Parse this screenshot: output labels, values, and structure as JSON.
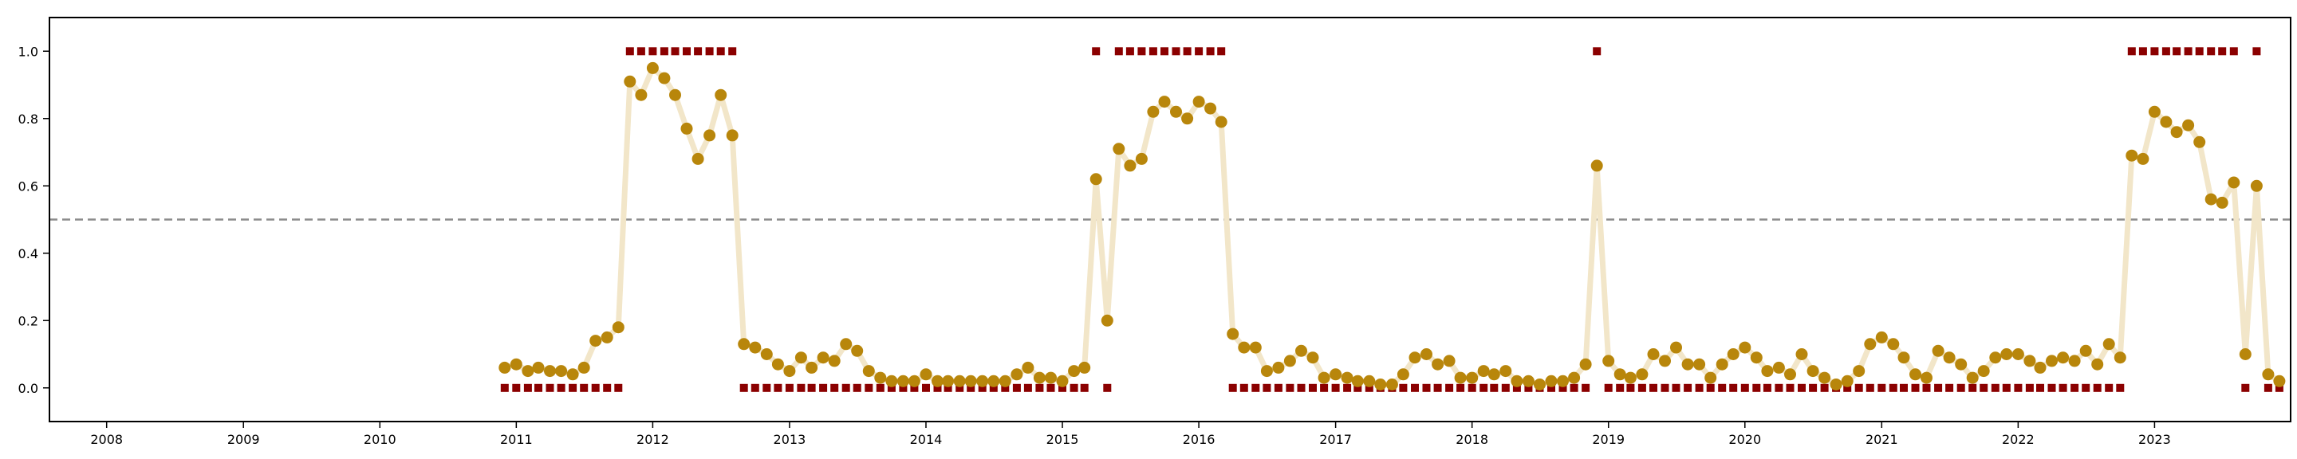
{
  "chart_data": {
    "type": "scatter",
    "x_axis": {
      "type": "date",
      "range": [
        "2007-08-01",
        "2023-12-31"
      ],
      "ticks": [
        "2008",
        "2009",
        "2010",
        "2011",
        "2012",
        "2013",
        "2014",
        "2015",
        "2016",
        "2017",
        "2018",
        "2019",
        "2020",
        "2021",
        "2022",
        "2023"
      ]
    },
    "y_axis": {
      "range": [
        -0.1,
        1.1
      ],
      "ticks": [
        "0.0",
        "0.2",
        "0.4",
        "0.6",
        "0.8",
        "1.0"
      ]
    },
    "threshold": 0.5,
    "grid": false,
    "legend": "none",
    "colors": {
      "probability_line": "#f2e6c9",
      "probability_point": "#b8860b",
      "label_marker": "#8b0000",
      "threshold_line": "#8c8c8c",
      "axes": "#000000"
    },
    "series": [
      {
        "x": [
          "2010-12",
          "2011-01",
          "2011-02",
          "2011-03",
          "2011-04",
          "2011-05",
          "2011-06",
          "2011-07",
          "2011-08",
          "2011-09",
          "2011-10",
          "2011-11",
          "2011-12",
          "2012-01",
          "2012-02",
          "2012-03",
          "2012-04",
          "2012-05",
          "2012-06",
          "2012-07",
          "2012-08",
          "2012-09",
          "2012-10",
          "2012-11",
          "2012-12",
          "2013-01",
          "2013-02",
          "2013-03",
          "2013-04",
          "2013-05",
          "2013-06",
          "2013-07",
          "2013-08",
          "2013-09",
          "2013-10",
          "2013-11",
          "2013-12",
          "2014-01",
          "2014-02",
          "2014-03",
          "2014-04",
          "2014-05",
          "2014-06",
          "2014-07",
          "2014-08",
          "2014-09",
          "2014-10",
          "2014-11",
          "2014-12",
          "2015-01",
          "2015-02",
          "2015-03",
          "2015-04",
          "2015-05",
          "2015-06",
          "2015-07",
          "2015-08",
          "2015-09",
          "2015-10",
          "2015-11",
          "2015-12",
          "2016-01",
          "2016-02",
          "2016-03",
          "2016-04",
          "2016-05",
          "2016-06",
          "2016-07",
          "2016-08",
          "2016-09",
          "2016-10",
          "2016-11",
          "2016-12",
          "2017-01",
          "2017-02",
          "2017-03",
          "2017-04",
          "2017-05",
          "2017-06",
          "2017-07",
          "2017-08",
          "2017-09",
          "2017-10",
          "2017-11",
          "2017-12",
          "2018-01",
          "2018-02",
          "2018-03",
          "2018-04",
          "2018-05",
          "2018-06",
          "2018-07",
          "2018-08",
          "2018-09",
          "2018-10",
          "2018-11",
          "2018-12",
          "2019-01",
          "2019-02",
          "2019-03",
          "2019-04",
          "2019-05",
          "2019-06",
          "2019-07",
          "2019-08",
          "2019-09",
          "2019-10",
          "2019-11",
          "2019-12",
          "2020-01",
          "2020-02",
          "2020-03",
          "2020-04",
          "2020-05",
          "2020-06",
          "2020-07",
          "2020-08",
          "2020-09",
          "2020-10",
          "2020-11",
          "2020-12",
          "2021-01",
          "2021-02",
          "2021-03",
          "2021-04",
          "2021-05",
          "2021-06",
          "2021-07",
          "2021-08",
          "2021-09",
          "2021-10",
          "2021-11",
          "2021-12",
          "2022-01",
          "2022-02",
          "2022-03",
          "2022-04",
          "2022-05",
          "2022-06",
          "2022-07",
          "2022-08",
          "2022-09",
          "2022-10",
          "2022-11",
          "2022-12",
          "2023-01",
          "2023-02",
          "2023-03",
          "2023-04",
          "2023-05",
          "2023-06",
          "2023-07",
          "2023-08",
          "2023-09",
          "2023-10",
          "2023-11",
          "2023-12"
        ],
        "probability": [
          0.06,
          0.07,
          0.05,
          0.06,
          0.05,
          0.05,
          0.04,
          0.06,
          0.14,
          0.15,
          0.18,
          0.91,
          0.87,
          0.95,
          0.92,
          0.87,
          0.77,
          0.68,
          0.75,
          0.87,
          0.75,
          0.13,
          0.12,
          0.1,
          0.07,
          0.05,
          0.09,
          0.06,
          0.09,
          0.08,
          0.13,
          0.11,
          0.05,
          0.03,
          0.02,
          0.02,
          0.02,
          0.04,
          0.02,
          0.02,
          0.02,
          0.02,
          0.02,
          0.02,
          0.02,
          0.04,
          0.06,
          0.03,
          0.03,
          0.02,
          0.05,
          0.06,
          0.62,
          0.2,
          0.71,
          0.66,
          0.68,
          0.82,
          0.85,
          0.82,
          0.8,
          0.85,
          0.83,
          0.79,
          0.16,
          0.12,
          0.12,
          0.05,
          0.06,
          0.08,
          0.11,
          0.09,
          0.03,
          0.04,
          0.03,
          0.02,
          0.02,
          0.01,
          0.01,
          0.04,
          0.09,
          0.1,
          0.07,
          0.08,
          0.03,
          0.03,
          0.05,
          0.04,
          0.05,
          0.02,
          0.02,
          0.01,
          0.02,
          0.02,
          0.03,
          0.07,
          0.66,
          0.08,
          0.04,
          0.03,
          0.04,
          0.1,
          0.08,
          0.12,
          0.07,
          0.07,
          0.03,
          0.07,
          0.1,
          0.12,
          0.09,
          0.05,
          0.06,
          0.04,
          0.1,
          0.05,
          0.03,
          0.01,
          0.02,
          0.05,
          0.13,
          0.15,
          0.13,
          0.09,
          0.04,
          0.03,
          0.11,
          0.09,
          0.07,
          0.03,
          0.05,
          0.09,
          0.1,
          0.1,
          0.08,
          0.06,
          0.08,
          0.09,
          0.08,
          0.11,
          0.07,
          0.13,
          0.09,
          0.69,
          0.68,
          0.82,
          0.79,
          0.76,
          0.78,
          0.73,
          0.56,
          0.55,
          0.61,
          0.1,
          0.6,
          0.04,
          0.02
        ],
        "label": [
          0,
          0,
          0,
          0,
          0,
          0,
          0,
          0,
          0,
          0,
          0,
          1,
          1,
          1,
          1,
          1,
          1,
          1,
          1,
          1,
          1,
          0,
          0,
          0,
          0,
          0,
          0,
          0,
          0,
          0,
          0,
          0,
          0,
          0,
          0,
          0,
          0,
          0,
          0,
          0,
          0,
          0,
          0,
          0,
          0,
          0,
          0,
          0,
          0,
          0,
          0,
          0,
          1,
          0,
          1,
          1,
          1,
          1,
          1,
          1,
          1,
          1,
          1,
          1,
          0,
          0,
          0,
          0,
          0,
          0,
          0,
          0,
          0,
          0,
          0,
          0,
          0,
          0,
          0,
          0,
          0,
          0,
          0,
          0,
          0,
          0,
          0,
          0,
          0,
          0,
          0,
          0,
          0,
          0,
          0,
          0,
          1,
          0,
          0,
          0,
          0,
          0,
          0,
          0,
          0,
          0,
          0,
          0,
          0,
          0,
          0,
          0,
          0,
          0,
          0,
          0,
          0,
          0,
          0,
          0,
          0,
          0,
          0,
          0,
          0,
          0,
          0,
          0,
          0,
          0,
          0,
          0,
          0,
          0,
          0,
          0,
          0,
          0,
          0,
          0,
          0,
          0,
          0,
          1,
          1,
          1,
          1,
          1,
          1,
          1,
          1,
          1,
          1,
          0,
          1,
          0,
          0
        ]
      }
    ]
  }
}
